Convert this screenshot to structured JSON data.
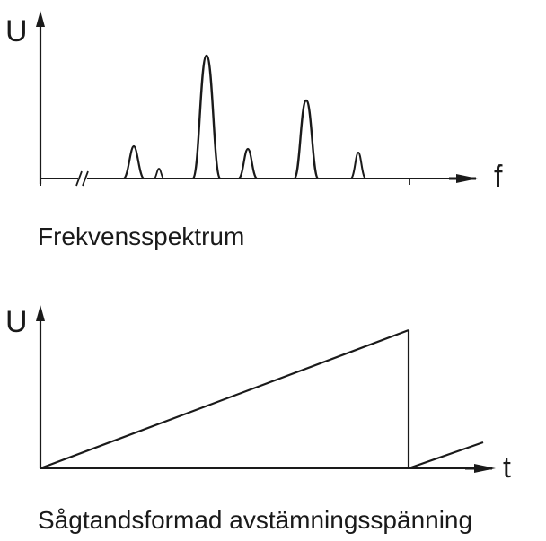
{
  "spectrum": {
    "y_axis_symbol": "U",
    "x_axis_symbol": "f",
    "caption": "Frekvensspektrum"
  },
  "sawtooth": {
    "y_axis_symbol": "U",
    "x_axis_symbol": "t",
    "caption": "Sågtandsformad avstämningsspänning"
  },
  "colors": {
    "ink": "#1a1a1a",
    "background": "#ffffff"
  }
}
